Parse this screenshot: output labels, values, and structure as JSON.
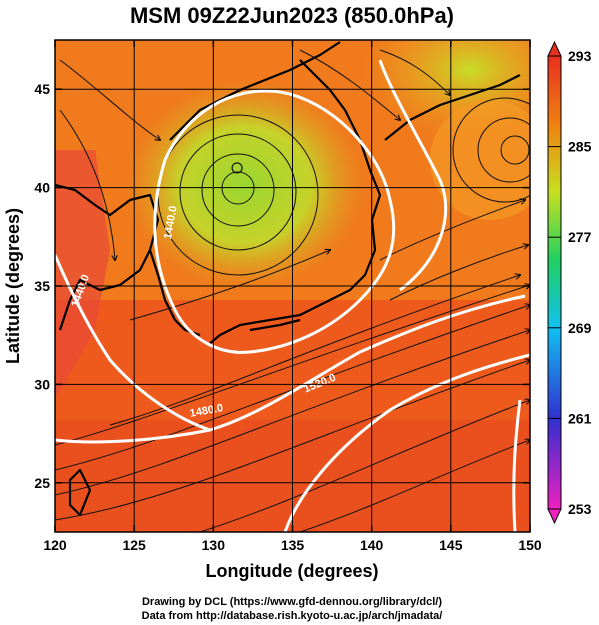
{
  "title": "MSM 09Z22Jun2023 (850.0hPa)",
  "x_axis": {
    "label": "Longitude (degrees)",
    "range": [
      120,
      150
    ],
    "ticks": [
      "120",
      "125",
      "130",
      "135",
      "140",
      "145",
      "150"
    ]
  },
  "y_axis": {
    "label": "Latitude  (degrees)",
    "range": [
      22.5,
      47.5
    ],
    "ticks": [
      "25",
      "30",
      "35",
      "40",
      "45"
    ]
  },
  "colorbar": {
    "ticks": [
      "293",
      "285",
      "277",
      "269",
      "261",
      "253"
    ],
    "range": [
      253,
      293
    ],
    "colors": [
      "#f020c0",
      "#3030d0",
      "#10c0f0",
      "#20d060",
      "#c8e020",
      "#f08010",
      "#e83020"
    ]
  },
  "contour_labels": [
    {
      "text": "1440.0",
      "lon": 127.5,
      "lat": 38.2,
      "rot": -80
    },
    {
      "text": "1440.0",
      "lon": 121.8,
      "lat": 34.7,
      "rot": -70
    },
    {
      "text": "1480.0",
      "lon": 129.6,
      "lat": 28.5,
      "rot": -10
    },
    {
      "text": "1520.0",
      "lon": 136.8,
      "lat": 29.9,
      "rot": -22
    }
  ],
  "low_center": {
    "lon": 131.5,
    "lat": 41.0
  },
  "credits": {
    "line1": "Drawing by DCL (https://www.gfd-dennou.org/library/dcl/)",
    "line2": "Data from http://database.rish.kyoto-u.ac.jp/arch/jmadata/"
  }
}
